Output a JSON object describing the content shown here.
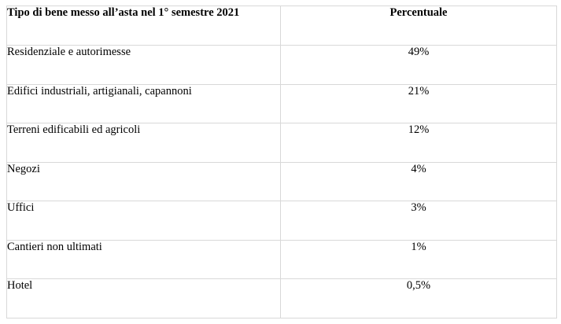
{
  "table": {
    "headers": {
      "type": "Tipo di bene messo all’asta nel 1° semestre 2021",
      "percent": "Percentuale"
    },
    "rows": [
      {
        "type": "Residenziale e autorimesse",
        "percent": "49%"
      },
      {
        "type": "Edifici industriali, artigianali, capannoni",
        "percent": "21%"
      },
      {
        "type": "Terreni edificabili ed agricoli",
        "percent": "12%"
      },
      {
        "type": "Negozi",
        "percent": "4%"
      },
      {
        "type": "Uffici",
        "percent": "3%"
      },
      {
        "type": "Cantieri non ultimati",
        "percent": "1%"
      },
      {
        "type": "Hotel",
        "percent": "0,5%"
      }
    ]
  },
  "colors": {
    "border": "#d8d8d8",
    "text": "#000000",
    "background": "#ffffff"
  }
}
